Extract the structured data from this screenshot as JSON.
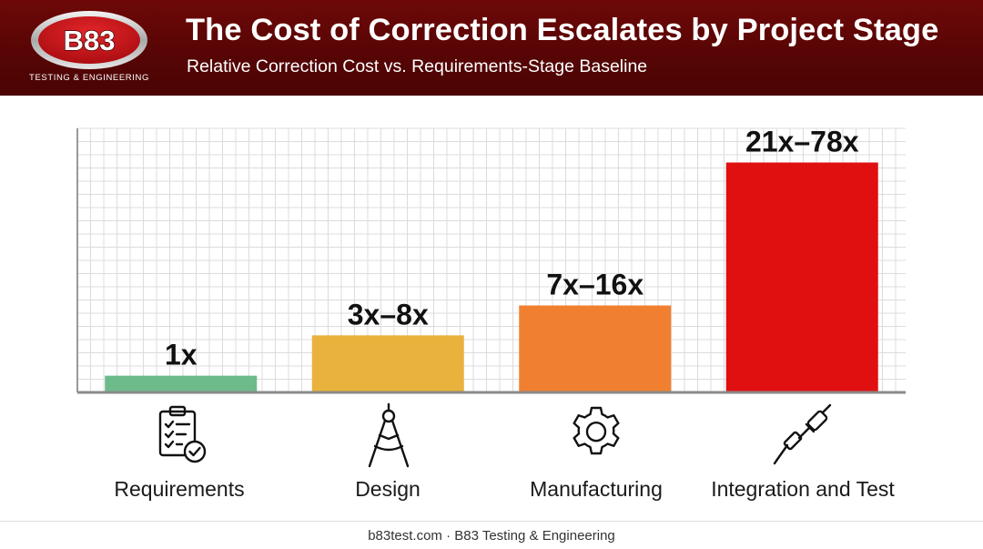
{
  "header": {
    "logo_text": "B83",
    "logo_tagline": "TESTING & ENGINEERING",
    "title": "The Cost of Correction Escalates by Project Stage",
    "subtitle": "Relative Correction Cost vs. Requirements-Stage Baseline"
  },
  "chart_data": {
    "type": "bar",
    "title": "The Cost of Correction Escalates by Project Stage",
    "subtitle": "Relative Correction Cost vs. Requirements-Stage Baseline",
    "categories": [
      "Requirements",
      "Design",
      "Manufacturing",
      "Integration and Test"
    ],
    "values": [
      1,
      8,
      16,
      78
    ],
    "ranges": [
      [
        1,
        1
      ],
      [
        3,
        8
      ],
      [
        7,
        16
      ],
      [
        21,
        78
      ]
    ],
    "data_labels": [
      "1x",
      "3x–8x",
      "7x–16x",
      "21x–78x"
    ],
    "colors": [
      "#6dbb8b",
      "#e8b23c",
      "#f08030",
      "#e01010"
    ],
    "icons": [
      "clipboard-checklist-icon",
      "drafting-compass-icon",
      "gear-icon",
      "soldering-iron-icon"
    ],
    "grid": true,
    "xlabel": "",
    "ylabel": "",
    "axis_labels_shown": false
  },
  "footer": {
    "text": "b83test.com · B83 Testing & Engineering"
  }
}
